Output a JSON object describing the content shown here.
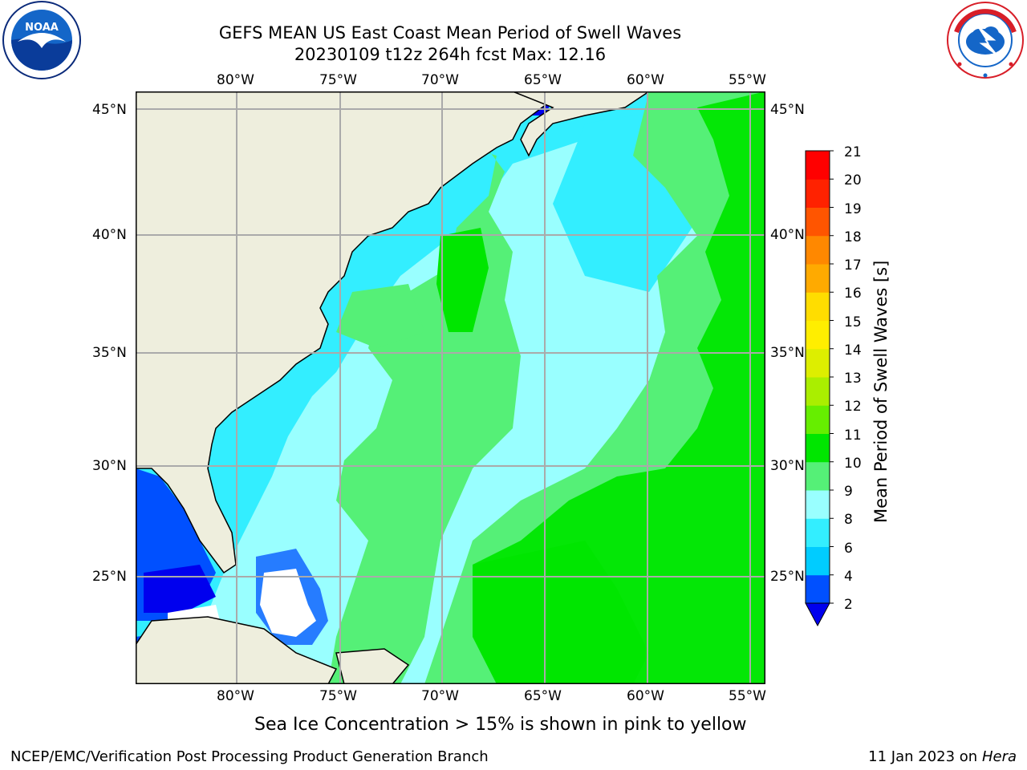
{
  "header": {
    "title_line1": "GEFS MEAN US East Coast Mean Period of Swell Waves",
    "title_line2": "20230109 t12z 264h fcst   Max: 12.16"
  },
  "logos": {
    "left": {
      "text": "NOAA",
      "ring_text": "NATIONAL OCEANIC AND ATMOSPHERIC ADMINISTRATION · U.S. DEPARTMENT OF COMMERCE",
      "icon": "noaa-logo"
    },
    "right": {
      "ring_text": "NATIONAL WEATHER SERVICE",
      "icon": "nws-logo"
    }
  },
  "axes": {
    "lon_labels": [
      "80°W",
      "75°W",
      "70°W",
      "65°W",
      "60°W",
      "55°W"
    ],
    "lat_labels": [
      "45°N",
      "40°N",
      "35°N",
      "30°N",
      "25°N"
    ]
  },
  "colorbar": {
    "title": "Mean Period of Swell Waves [s]",
    "levels": [
      "2",
      "4",
      "6",
      "8",
      "9",
      "10",
      "11",
      "12",
      "13",
      "14",
      "15",
      "16",
      "17",
      "18",
      "19",
      "20",
      "21"
    ],
    "colors": [
      "#0050ff",
      "#00ccff",
      "#33eeff",
      "#99ffff",
      "#55f077",
      "#00e600",
      "#66ee00",
      "#aaee00",
      "#ddee00",
      "#ffee00",
      "#ffdd00",
      "#ffaa00",
      "#ff8800",
      "#ff5500",
      "#ff2200",
      "#ff0000"
    ],
    "under_color": "#0000ee"
  },
  "colors": {
    "land": "#eeeedd",
    "grid": "#aaaaaa",
    "coast": "#000000"
  },
  "note": "Sea Ice Concentration > 15% is shown in pink to yellow",
  "footer": {
    "left": "NCEP/EMC/Verification Post Processing Product Generation Branch",
    "right_prefix": "11 Jan 2023 on ",
    "right_host": "Hera"
  }
}
